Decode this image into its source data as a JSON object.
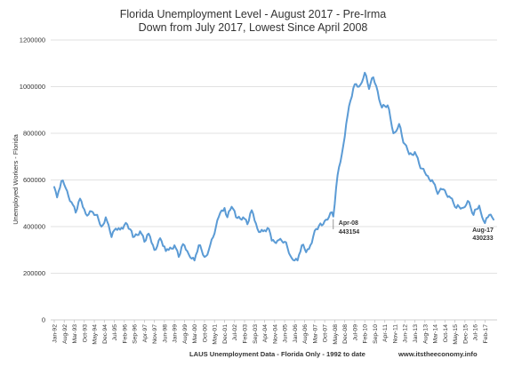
{
  "chart_data": {
    "type": "line",
    "title": "Florida Unemployment Level - August 2017 - Pre-Irma",
    "subtitle": "Down from July 2017, Lowest Since April 2008",
    "ylabel": "Unemployed Workers - Florida",
    "xlabel": "LAUS Unemployment Data - Florida Only - 1992 to date",
    "source": "www.itstheeconomy.info",
    "ylim": [
      0,
      1200000
    ],
    "yticks": [
      "0",
      "200000",
      "400000",
      "600000",
      "800000",
      "1000000",
      "1200000"
    ],
    "xticks": [
      "Jan-92",
      "Aug-92",
      "Mar-93",
      "Oct-93",
      "May-94",
      "Dec-94",
      "Jul-95",
      "Feb-96",
      "Sep-96",
      "Apr-97",
      "Nov-97",
      "Jun-98",
      "Jan-99",
      "Aug-99",
      "Mar-00",
      "Oct-00",
      "May-01",
      "Dec-01",
      "Jul-02",
      "Feb-03",
      "Sep-03",
      "Apr-04",
      "Nov-04",
      "Jun-05",
      "Jan-06",
      "Aug-06",
      "Mar-07",
      "Oct-07",
      "May-08",
      "Dec-08",
      "Jul-09",
      "Feb-10",
      "Sep-10",
      "Apr-11",
      "Nov-11",
      "Jun-12",
      "Jan-13",
      "Aug-13",
      "Mar-14",
      "Oct-14",
      "May-15",
      "Dec-15",
      "Jul-16",
      "Feb-17"
    ],
    "grid": true,
    "legend": "none",
    "color": "#5b9bd5",
    "series_anchor_points": [
      {
        "x": "1992-01",
        "y": 570000
      },
      {
        "x": "1992-03",
        "y": 525000
      },
      {
        "x": "1992-06",
        "y": 595000
      },
      {
        "x": "1992-09",
        "y": 565000
      },
      {
        "x": "1993-01",
        "y": 505000
      },
      {
        "x": "1993-04",
        "y": 460000
      },
      {
        "x": "1993-07",
        "y": 520000
      },
      {
        "x": "1993-11",
        "y": 455000
      },
      {
        "x": "1994-03",
        "y": 465000
      },
      {
        "x": "1994-06",
        "y": 450000
      },
      {
        "x": "1994-10",
        "y": 400000
      },
      {
        "x": "1995-01",
        "y": 440000
      },
      {
        "x": "1995-05",
        "y": 355000
      },
      {
        "x": "1995-07",
        "y": 385000
      },
      {
        "x": "1995-12",
        "y": 395000
      },
      {
        "x": "1996-04",
        "y": 410000
      },
      {
        "x": "1996-08",
        "y": 355000
      },
      {
        "x": "1997-01",
        "y": 380000
      },
      {
        "x": "1997-04",
        "y": 335000
      },
      {
        "x": "1997-07",
        "y": 370000
      },
      {
        "x": "1997-11",
        "y": 300000
      },
      {
        "x": "1998-03",
        "y": 350000
      },
      {
        "x": "1998-07",
        "y": 295000
      },
      {
        "x": "1999-01",
        "y": 320000
      },
      {
        "x": "1999-04",
        "y": 270000
      },
      {
        "x": "1999-07",
        "y": 325000
      },
      {
        "x": "1999-10",
        "y": 295000
      },
      {
        "x": "2000-03",
        "y": 255000
      },
      {
        "x": "2000-06",
        "y": 320000
      },
      {
        "x": "2000-10",
        "y": 270000
      },
      {
        "x": "2001-01",
        "y": 300000
      },
      {
        "x": "2001-05",
        "y": 370000
      },
      {
        "x": "2001-09",
        "y": 460000
      },
      {
        "x": "2001-12",
        "y": 480000
      },
      {
        "x": "2002-02",
        "y": 440000
      },
      {
        "x": "2002-05",
        "y": 485000
      },
      {
        "x": "2002-08",
        "y": 440000
      },
      {
        "x": "2003-01",
        "y": 440000
      },
      {
        "x": "2003-04",
        "y": 410000
      },
      {
        "x": "2003-07",
        "y": 470000
      },
      {
        "x": "2003-11",
        "y": 390000
      },
      {
        "x": "2004-03",
        "y": 380000
      },
      {
        "x": "2004-07",
        "y": 390000
      },
      {
        "x": "2004-09",
        "y": 340000
      },
      {
        "x": "2005-01",
        "y": 340000
      },
      {
        "x": "2005-06",
        "y": 335000
      },
      {
        "x": "2005-10",
        "y": 275000
      },
      {
        "x": "2006-03",
        "y": 255000
      },
      {
        "x": "2006-06",
        "y": 320000
      },
      {
        "x": "2006-09",
        "y": 290000
      },
      {
        "x": "2006-12",
        "y": 320000
      },
      {
        "x": "2007-04",
        "y": 390000
      },
      {
        "x": "2007-08",
        "y": 405000
      },
      {
        "x": "2007-11",
        "y": 430000
      },
      {
        "x": "2008-02",
        "y": 460000
      },
      {
        "x": "2008-04",
        "y": 443154
      },
      {
        "x": "2008-07",
        "y": 620000
      },
      {
        "x": "2008-10",
        "y": 710000
      },
      {
        "x": "2009-01",
        "y": 840000
      },
      {
        "x": "2009-04",
        "y": 940000
      },
      {
        "x": "2009-07",
        "y": 1010000
      },
      {
        "x": "2009-10",
        "y": 1000000
      },
      {
        "x": "2010-02",
        "y": 1060000
      },
      {
        "x": "2010-05",
        "y": 990000
      },
      {
        "x": "2010-08",
        "y": 1040000
      },
      {
        "x": "2010-11",
        "y": 980000
      },
      {
        "x": "2011-02",
        "y": 910000
      },
      {
        "x": "2011-06",
        "y": 920000
      },
      {
        "x": "2011-10",
        "y": 800000
      },
      {
        "x": "2012-02",
        "y": 840000
      },
      {
        "x": "2012-05",
        "y": 760000
      },
      {
        "x": "2012-09",
        "y": 710000
      },
      {
        "x": "2013-01",
        "y": 720000
      },
      {
        "x": "2013-05",
        "y": 650000
      },
      {
        "x": "2013-09",
        "y": 620000
      },
      {
        "x": "2014-01",
        "y": 600000
      },
      {
        "x": "2014-05",
        "y": 540000
      },
      {
        "x": "2014-09",
        "y": 560000
      },
      {
        "x": "2015-01",
        "y": 530000
      },
      {
        "x": "2015-06",
        "y": 480000
      },
      {
        "x": "2015-10",
        "y": 480000
      },
      {
        "x": "2016-02",
        "y": 510000
      },
      {
        "x": "2016-06",
        "y": 450000
      },
      {
        "x": "2016-10",
        "y": 490000
      },
      {
        "x": "2017-02",
        "y": 415000
      },
      {
        "x": "2017-05",
        "y": 450000
      },
      {
        "x": "2017-07",
        "y": 440000
      },
      {
        "x": "2017-08",
        "y": 430233
      }
    ],
    "annotations": [
      {
        "date": "Apr-08",
        "label": "Apr-08",
        "value": "443154"
      },
      {
        "date": "Aug-17",
        "label": "Aug-17",
        "value": "430233"
      }
    ]
  }
}
